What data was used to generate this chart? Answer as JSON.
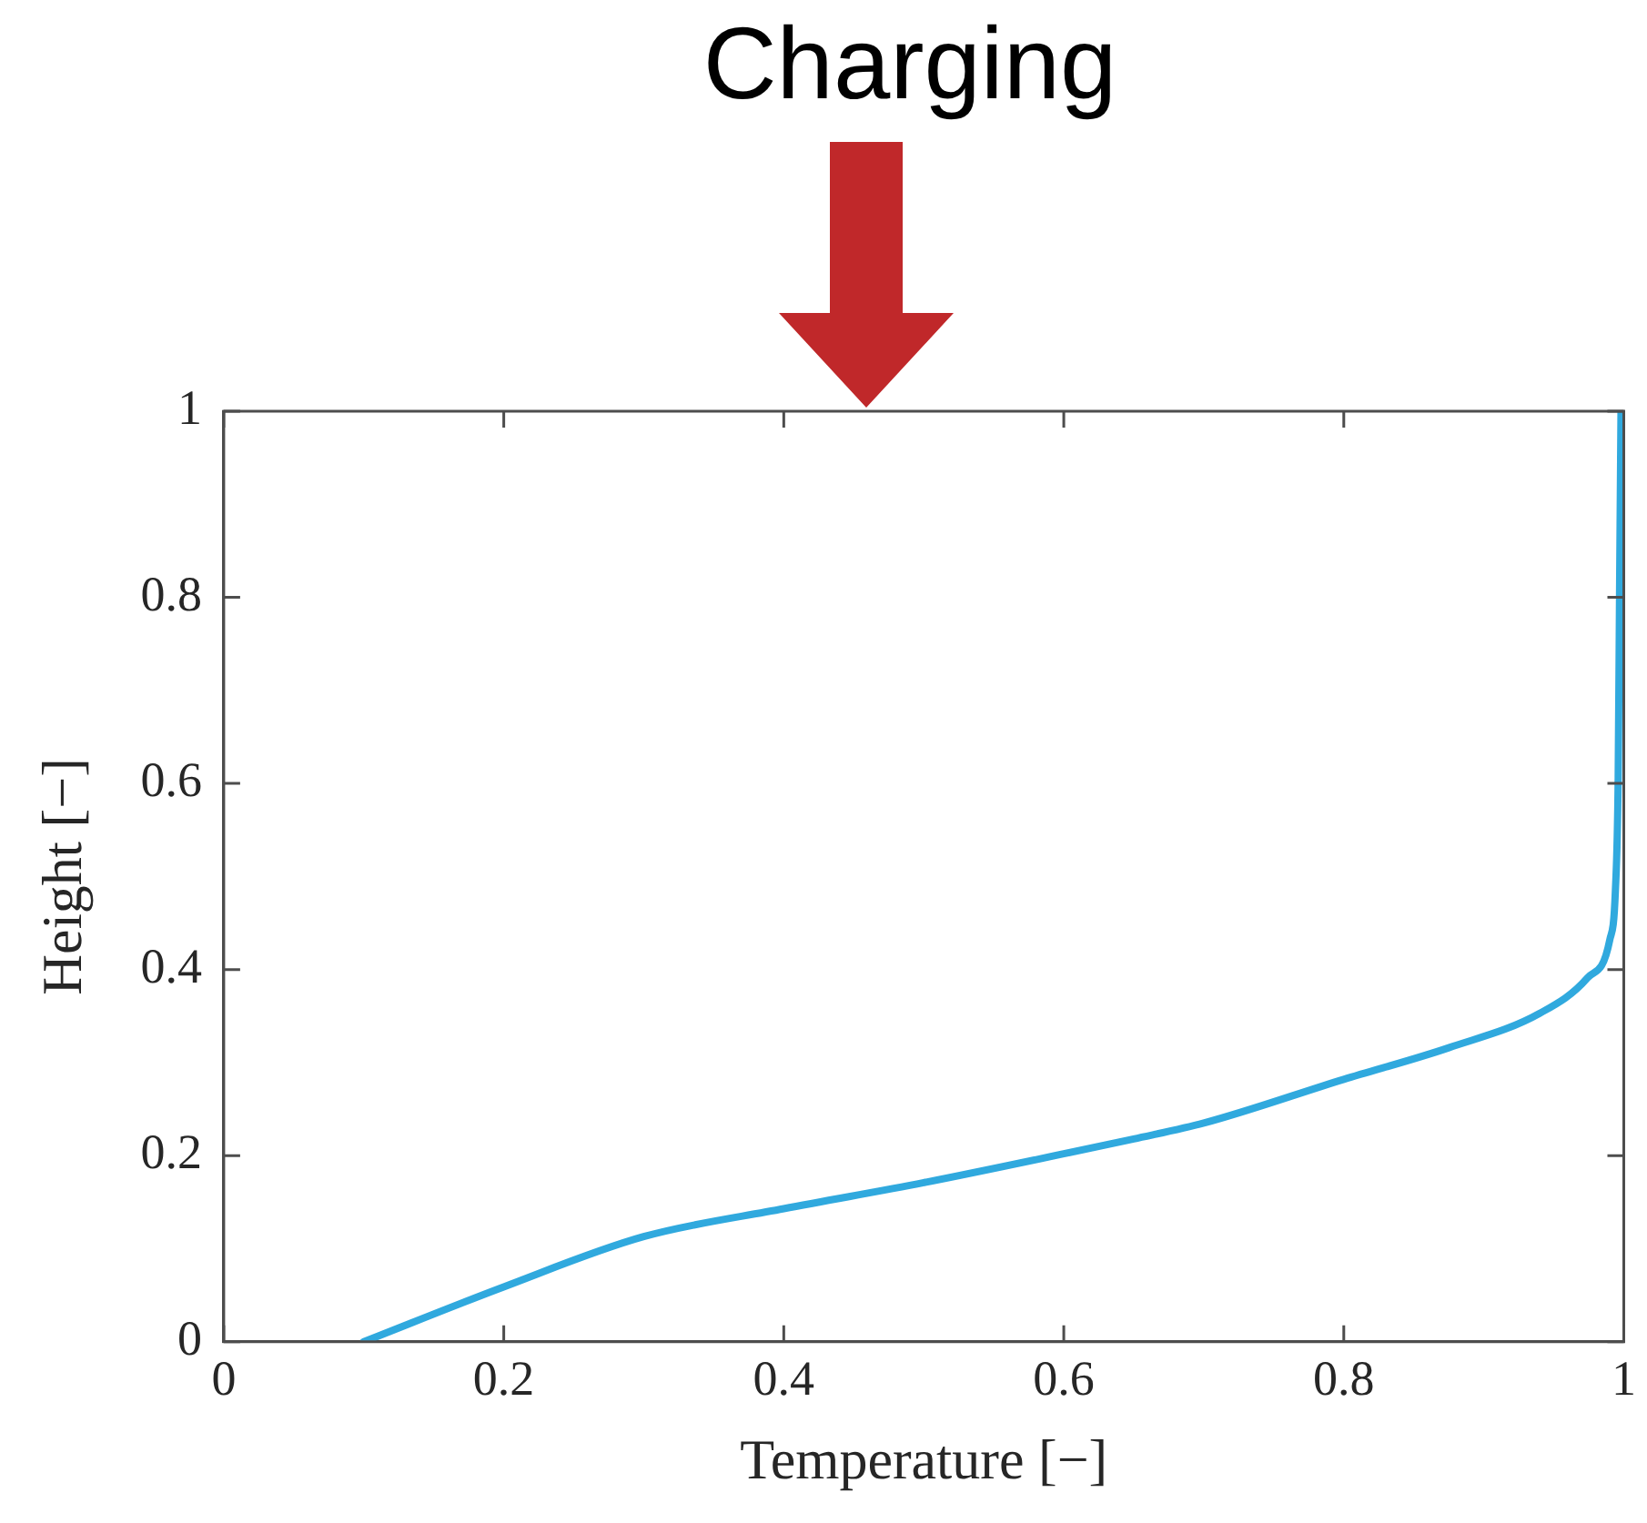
{
  "chart_data": {
    "type": "line",
    "title": "Charging",
    "xlabel": "Temperature [−]",
    "ylabel": "Height [−]",
    "x": [
      0.1,
      0.2,
      0.3,
      0.4,
      0.5,
      0.6,
      0.65,
      0.7,
      0.8,
      0.875,
      0.94,
      0.974,
      0.99,
      0.994,
      0.996,
      0.997,
      0.998
    ],
    "series": [
      {
        "color": "#30a9de",
        "values": [
          0,
          0.059,
          0.113,
          0.143,
          0.171,
          0.202,
          0.218,
          0.235,
          0.282,
          0.316,
          0.353,
          0.391,
          0.432,
          0.485,
          0.607,
          0.81,
          1
        ]
      }
    ],
    "xlim": [
      0,
      1
    ],
    "ylim": [
      0,
      1
    ],
    "xticks": [
      0,
      0.2,
      0.4,
      0.6,
      0.8,
      1
    ],
    "yticks": [
      0,
      0.2,
      0.4,
      0.6,
      0.8,
      1
    ],
    "grid": false,
    "legend": false
  }
}
